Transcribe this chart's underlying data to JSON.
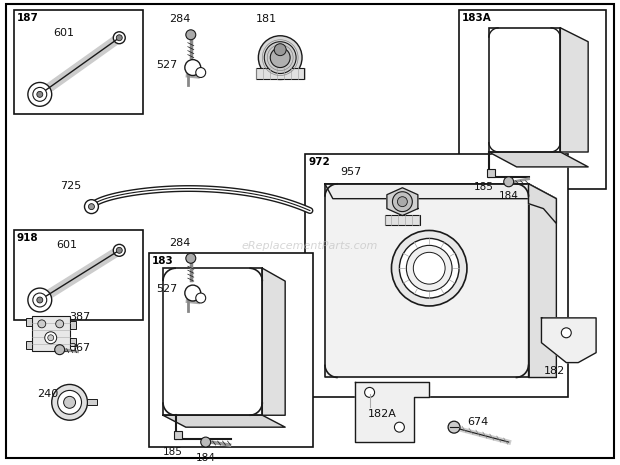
{
  "bg_color": "#ffffff",
  "line_color": "#1a1a1a",
  "text_color": "#111111",
  "watermark": "eReplacementParts.com",
  "watermark_color": "#bbbbbb",
  "fig_w": 6.2,
  "fig_h": 4.65,
  "dpi": 100
}
